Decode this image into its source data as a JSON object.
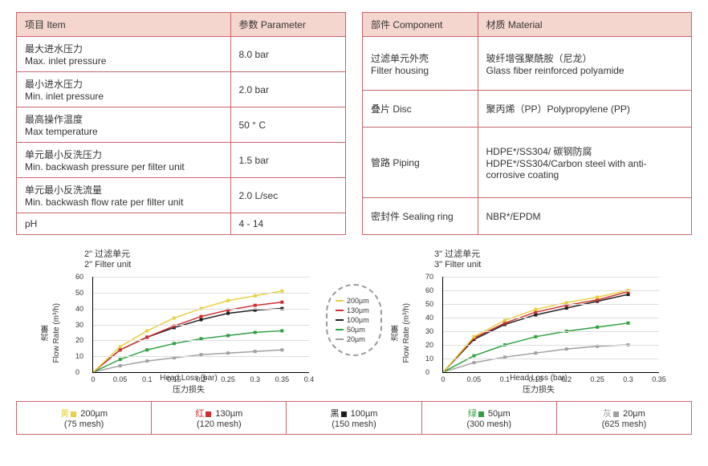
{
  "table1": {
    "headers": [
      "项目 Item",
      "参数 Parameter"
    ],
    "rows": [
      [
        "最大进水压力\nMax. inlet pressure",
        "8.0 bar"
      ],
      [
        "最小进水压力\nMin. inlet pressure",
        "2.0 bar"
      ],
      [
        "最高操作温度\nMax temperature",
        "50 ° C"
      ],
      [
        "单元最小反洗压力\nMin. backwash pressure per filter unit",
        "1.5 bar"
      ],
      [
        "单元最小反洗流量\nMin. backwash flow rate per filter unit",
        "2.0 L/sec"
      ],
      [
        "pH",
        "4 - 14"
      ]
    ]
  },
  "table2": {
    "headers": [
      "部件 Component",
      "材质 Material"
    ],
    "rows": [
      [
        "过滤单元外壳\nFilter housing",
        "玻纤增强聚酰胺（尼龙）\nGlass fiber reinforced polyamide"
      ],
      [
        "叠片 Disc",
        "聚丙烯（PP）Polypropylene (PP)"
      ],
      [
        "管路 Piping",
        "HDPE*/SS304/ 碳钢防腐\nHDPE*/SS304/Carbon steel with anti-corrosive coating"
      ],
      [
        "密封件 Sealing ring",
        "NBR*/EPDM"
      ]
    ]
  },
  "chart1": {
    "title": "2\" 过滤单元\n2\" Filter unit",
    "ylabel": "流量\nFlow Rate (m³/h)",
    "xlabel_en": "Head Loss (bar)",
    "xlabel_cn": "压力损失",
    "ylim": [
      0,
      60
    ],
    "ytick_step": 10,
    "xlim": [
      0,
      0.4
    ],
    "xtick_step": 0.05,
    "series": {
      "200": {
        "color": "#e8d040",
        "data": [
          [
            0,
            0
          ],
          [
            0.05,
            16
          ],
          [
            0.1,
            26
          ],
          [
            0.15,
            34
          ],
          [
            0.2,
            40
          ],
          [
            0.25,
            45
          ],
          [
            0.3,
            48
          ],
          [
            0.35,
            51
          ]
        ]
      },
      "130": {
        "color": "#d03030",
        "data": [
          [
            0,
            0
          ],
          [
            0.05,
            14
          ],
          [
            0.1,
            22
          ],
          [
            0.15,
            29
          ],
          [
            0.2,
            35
          ],
          [
            0.25,
            39
          ],
          [
            0.3,
            42
          ],
          [
            0.35,
            44
          ]
        ]
      },
      "100": {
        "color": "#202020",
        "data": [
          [
            0,
            0
          ],
          [
            0.05,
            14
          ],
          [
            0.1,
            22
          ],
          [
            0.15,
            28
          ],
          [
            0.2,
            33
          ],
          [
            0.25,
            37
          ],
          [
            0.3,
            39
          ],
          [
            0.35,
            40
          ]
        ]
      },
      "50": {
        "color": "#30a040",
        "data": [
          [
            0,
            0
          ],
          [
            0.05,
            8
          ],
          [
            0.1,
            14
          ],
          [
            0.15,
            18
          ],
          [
            0.2,
            21
          ],
          [
            0.25,
            23
          ],
          [
            0.3,
            25
          ],
          [
            0.35,
            26
          ]
        ]
      },
      "20": {
        "color": "#a0a0a0",
        "data": [
          [
            0,
            0
          ],
          [
            0.05,
            4
          ],
          [
            0.1,
            7
          ],
          [
            0.15,
            9
          ],
          [
            0.2,
            11
          ],
          [
            0.25,
            12
          ],
          [
            0.3,
            13
          ],
          [
            0.35,
            14
          ]
        ]
      }
    }
  },
  "chart2": {
    "title": "3\" 过滤单元\n3\" Filter unit",
    "ylabel": "流量\nFlow Rate (m³/h)",
    "xlabel_en": "Head Loss (bar)",
    "xlabel_cn": "压力损失",
    "ylim": [
      0,
      70
    ],
    "ytick_step": 10,
    "xlim": [
      0,
      0.35
    ],
    "xtick_step": 0.05,
    "series": {
      "200": {
        "color": "#e8d040",
        "data": [
          [
            0,
            0
          ],
          [
            0.05,
            26
          ],
          [
            0.1,
            38
          ],
          [
            0.15,
            46
          ],
          [
            0.2,
            51
          ],
          [
            0.25,
            55
          ],
          [
            0.3,
            60
          ]
        ]
      },
      "130": {
        "color": "#d03030",
        "data": [
          [
            0,
            0
          ],
          [
            0.05,
            25
          ],
          [
            0.1,
            36
          ],
          [
            0.15,
            44
          ],
          [
            0.2,
            49
          ],
          [
            0.25,
            53
          ],
          [
            0.3,
            59
          ]
        ]
      },
      "100": {
        "color": "#202020",
        "data": [
          [
            0,
            0
          ],
          [
            0.05,
            24
          ],
          [
            0.1,
            35
          ],
          [
            0.15,
            42
          ],
          [
            0.2,
            47
          ],
          [
            0.25,
            52
          ],
          [
            0.3,
            57
          ]
        ]
      },
      "50": {
        "color": "#30a040",
        "data": [
          [
            0,
            0
          ],
          [
            0.05,
            12
          ],
          [
            0.1,
            20
          ],
          [
            0.15,
            26
          ],
          [
            0.2,
            30
          ],
          [
            0.25,
            33
          ],
          [
            0.3,
            36
          ]
        ]
      },
      "20": {
        "color": "#a0a0a0",
        "data": [
          [
            0,
            0
          ],
          [
            0.05,
            7
          ],
          [
            0.1,
            11
          ],
          [
            0.15,
            14
          ],
          [
            0.2,
            17
          ],
          [
            0.25,
            19
          ],
          [
            0.3,
            20
          ]
        ]
      }
    }
  },
  "mid_legend": [
    {
      "color": "#e8d040",
      "label": "200µm"
    },
    {
      "color": "#d03030",
      "label": "130µm"
    },
    {
      "color": "#202020",
      "label": "100µm"
    },
    {
      "color": "#30a040",
      "label": "50µm"
    },
    {
      "color": "#a0a0a0",
      "label": "20µm"
    }
  ],
  "bottom_legend": [
    {
      "cn": "黄",
      "color": "#e8d040",
      "size": "200µm",
      "mesh": "(75 mesh)"
    },
    {
      "cn": "红",
      "color": "#d03030",
      "size": "130µm",
      "mesh": "(120 mesh)"
    },
    {
      "cn": "黑",
      "color": "#202020",
      "size": "100µm",
      "mesh": "(150 mesh)"
    },
    {
      "cn": "绿",
      "color": "#30a040",
      "size": "50µm",
      "mesh": "(300 mesh)"
    },
    {
      "cn": "灰",
      "color": "#a0a0a0",
      "size": "20µm",
      "mesh": "(625 mesh)"
    }
  ]
}
